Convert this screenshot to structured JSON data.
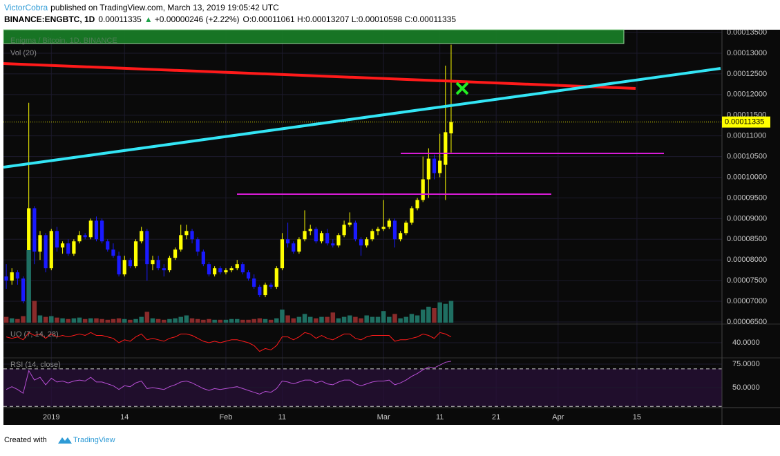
{
  "header": {
    "author": "VictorCobra",
    "published": "published on TradingView.com, March 13, 2019 19:05:42 UTC",
    "symbol": "BINANCE:ENGBTC, 1D",
    "last": "0.00011335",
    "change": "+0.00000246 (+2.22%)",
    "ohlc": "O:0.00011061 H:0.00013207 L:0.00010598 C:0.00011335"
  },
  "footer": {
    "created": "Created with",
    "brand": "TradingView"
  },
  "chart_data": [
    {
      "type": "candlestick",
      "title": "Enigma / Bitcoin, 1D, BINANCE",
      "price_label": "0.00011335",
      "up_color": "#ffff00",
      "down_color": "#1a1aff",
      "open": [
        7.6e-05,
        7.5e-05,
        7.7e-05,
        7.55e-05,
        7e-05,
        9.25e-05,
        8.2e-05,
        8.6e-05,
        7.8e-05,
        8.7e-05,
        8.3e-05,
        8.4e-05,
        8.15e-05,
        8.45e-05,
        8.6e-05,
        8.55e-05,
        8.95e-05,
        8.95e-05,
        8.45e-05,
        8.25e-05,
        8.1e-05,
        7.65e-05,
        8e-05,
        7.85e-05,
        8.45e-05,
        8.7e-05,
        7.9e-05,
        8e-05,
        7.8e-05,
        7.75e-05,
        8.05e-05,
        8.25e-05,
        8.6e-05,
        8.7e-05,
        8.5e-05,
        8.2e-05,
        7.9e-05,
        7.65e-05,
        7.8e-05,
        7.7e-05,
        7.75e-05,
        7.8e-05,
        7.9e-05,
        7.7e-05,
        7.55e-05,
        7.35e-05,
        7.15e-05,
        7.4e-05,
        7.35e-05,
        7.8e-05,
        8.5e-05,
        8.4e-05,
        8.2e-05,
        8.5e-05,
        8.7e-05,
        8.75e-05,
        8.45e-05,
        8.65e-05,
        8.4e-05,
        8.35e-05,
        8.6e-05,
        8.85e-05,
        8.9e-05,
        8.5e-05,
        8.35e-05,
        8.5e-05,
        8.7e-05,
        8.75e-05,
        8.8e-05,
        8.95e-05,
        8.5e-05,
        8.65e-05,
        8.9e-05,
        9.25e-05,
        9.45e-05,
        9.95e-05,
        0.0001045,
        0.000101,
        0.000103,
        0.00011061
      ],
      "high": [
        7.9e-05,
        7.8e-05,
        7.75e-05,
        7.6e-05,
        0.000118,
        9.3e-05,
        8.7e-05,
        8.65e-05,
        8.75e-05,
        8.8e-05,
        8.45e-05,
        8.5e-05,
        8.5e-05,
        8.7e-05,
        8.65e-05,
        9e-05,
        9.05e-05,
        9e-05,
        8.5e-05,
        8.4e-05,
        8.2e-05,
        8.1e-05,
        8.05e-05,
        8.5e-05,
        8.8e-05,
        8.75e-05,
        8.1e-05,
        8.1e-05,
        7.9e-05,
        8.1e-05,
        8.3e-05,
        8.85e-05,
        8.85e-05,
        8.75e-05,
        8.55e-05,
        8.25e-05,
        7.95e-05,
        7.85e-05,
        7.85e-05,
        7.8e-05,
        7.85e-05,
        8e-05,
        7.95e-05,
        7.75e-05,
        7.65e-05,
        7.4e-05,
        7.45e-05,
        7.45e-05,
        7.85e-05,
        8.65e-05,
        8.9e-05,
        8.45e-05,
        8.55e-05,
        9.2e-05,
        8.85e-05,
        8.8e-05,
        8.7e-05,
        8.75e-05,
        8.5e-05,
        8.65e-05,
        8.95e-05,
        9.15e-05,
        8.95e-05,
        8.55e-05,
        8.55e-05,
        8.75e-05,
        8.8e-05,
        9.45e-05,
        9e-05,
        9e-05,
        8.7e-05,
        8.95e-05,
        9.3e-05,
        9.5e-05,
        0.000105,
        0.000107,
        0.0001055,
        0.0001105,
        0.000127,
        0.00013207
      ],
      "low": [
        7.3e-05,
        7.4e-05,
        7.4e-05,
        6.95e-05,
        6.9e-05,
        7.9e-05,
        8e-05,
        7.7e-05,
        7.75e-05,
        8.2e-05,
        8.15e-05,
        8.1e-05,
        8.1e-05,
        8.4e-05,
        8.5e-05,
        8.5e-05,
        8.45e-05,
        8.4e-05,
        8.2e-05,
        8.05e-05,
        7.6e-05,
        7.6e-05,
        7.8e-05,
        7.8e-05,
        8.4e-05,
        7.5e-05,
        7.75e-05,
        7.75e-05,
        7.6e-05,
        7.7e-05,
        8e-05,
        8.2e-05,
        8.5e-05,
        8.4e-05,
        8.1e-05,
        7.85e-05,
        7.6e-05,
        7.6e-05,
        7.65e-05,
        7.65e-05,
        7.7e-05,
        7.75e-05,
        7.65e-05,
        7.5e-05,
        7.3e-05,
        7.1e-05,
        7.1e-05,
        7.3e-05,
        7.3e-05,
        7.75e-05,
        8.3e-05,
        8.15e-05,
        8.15e-05,
        8.45e-05,
        8.6e-05,
        8.4e-05,
        8.4e-05,
        8.35e-05,
        8.3e-05,
        8.3e-05,
        8.55e-05,
        8.8e-05,
        8.45e-05,
        8.1e-05,
        8.3e-05,
        8.45e-05,
        8.6e-05,
        8.7e-05,
        8.75e-05,
        8.3e-05,
        8.45e-05,
        8.6e-05,
        8.85e-05,
        9.2e-05,
        9.4e-05,
        9.5e-05,
        9.95e-05,
        0.0001,
        9.45e-05,
        0.00010598
      ],
      "close": [
        7.5e-05,
        7.7e-05,
        7.55e-05,
        7e-05,
        9.25e-05,
        8.2e-05,
        8.6e-05,
        7.8e-05,
        8.7e-05,
        8.3e-05,
        8.4e-05,
        8.15e-05,
        8.45e-05,
        8.6e-05,
        8.55e-05,
        8.95e-05,
        8.5e-05,
        8.45e-05,
        8.25e-05,
        8.1e-05,
        7.65e-05,
        8e-05,
        7.85e-05,
        8.45e-05,
        8.7e-05,
        7.9e-05,
        8e-05,
        7.8e-05,
        7.75e-05,
        8.05e-05,
        8.25e-05,
        8.6e-05,
        8.7e-05,
        8.5e-05,
        8.2e-05,
        7.9e-05,
        7.65e-05,
        7.8e-05,
        7.7e-05,
        7.75e-05,
        7.8e-05,
        7.9e-05,
        7.7e-05,
        7.55e-05,
        7.35e-05,
        7.15e-05,
        7.4e-05,
        7.35e-05,
        7.8e-05,
        8.5e-05,
        8.4e-05,
        8.2e-05,
        8.5e-05,
        8.7e-05,
        8.75e-05,
        8.45e-05,
        8.65e-05,
        8.4e-05,
        8.35e-05,
        8.6e-05,
        8.85e-05,
        8.9e-05,
        8.5e-05,
        8.35e-05,
        8.5e-05,
        8.7e-05,
        8.75e-05,
        8.8e-05,
        8.95e-05,
        8.5e-05,
        8.65e-05,
        8.9e-05,
        9.25e-05,
        9.45e-05,
        9.95e-05,
        0.0001045,
        0.000101,
        0.000104,
        0.00011089,
        0.00011335
      ],
      "xlim": [
        -0.5,
        127.1
      ],
      "xticks": [
        {
          "value": 8,
          "label": "2019"
        },
        {
          "value": 21,
          "label": "14"
        },
        {
          "value": 39,
          "label": "Feb"
        },
        {
          "value": 49,
          "label": "11"
        },
        {
          "value": 67,
          "label": "Mar"
        },
        {
          "value": 77,
          "label": "11"
        },
        {
          "value": 87,
          "label": "21"
        },
        {
          "value": 98,
          "label": "Apr"
        },
        {
          "value": 112,
          "label": "15"
        }
      ],
      "ylim": [
        6.483e-05,
        0.00013568
      ],
      "yticks": [
        {
          "value": 0.000135,
          "label": "0.00013500"
        },
        {
          "value": 0.00013,
          "label": "0.00013000"
        },
        {
          "value": 0.000125,
          "label": "0.00012500"
        },
        {
          "value": 0.00012,
          "label": "0.00012000"
        },
        {
          "value": 0.000115,
          "label": "0.00011500"
        },
        {
          "value": 0.00011,
          "label": "0.00011000"
        },
        {
          "value": 0.000105,
          "label": "0.00010500"
        },
        {
          "value": 0.0001,
          "label": "0.00010000"
        },
        {
          "value": 9.5e-05,
          "label": "0.00009500"
        },
        {
          "value": 9e-05,
          "label": "0.00009000"
        },
        {
          "value": 8.5e-05,
          "label": "0.00008500"
        },
        {
          "value": 8e-05,
          "label": "0.00008000"
        },
        {
          "value": 7.5e-05,
          "label": "0.00007500"
        },
        {
          "value": 7e-05,
          "label": "0.00007000"
        },
        {
          "value": 6.5e-05,
          "label": "0.00006500"
        }
      ],
      "grid": true
    },
    {
      "type": "bar",
      "title": "Vol (20)",
      "up_color": "#1f6f62",
      "down_color": "#8a2b2b",
      "ylim": [
        0,
        100
      ],
      "values": [
        8,
        6,
        5,
        9,
        100,
        30,
        10,
        8,
        9,
        7,
        6,
        5,
        6,
        7,
        5,
        6,
        6,
        5,
        4,
        5,
        6,
        5,
        4,
        5,
        8,
        15,
        6,
        5,
        4,
        5,
        6,
        8,
        10,
        6,
        5,
        4,
        5,
        4,
        4,
        4,
        5,
        5,
        4,
        4,
        5,
        6,
        5,
        4,
        6,
        18,
        10,
        6,
        8,
        12,
        8,
        6,
        8,
        8,
        14,
        6,
        8,
        10,
        8,
        6,
        10,
        8,
        8,
        16,
        8,
        12,
        6,
        8,
        12,
        10,
        18,
        22,
        20,
        28,
        26,
        30
      ]
    },
    {
      "type": "line",
      "title": "UO (7, 14, 28)",
      "color": "#ff1a1a",
      "ylim": [
        30,
        50
      ],
      "yticks": [
        {
          "value": 40,
          "label": "40.0000"
        }
      ],
      "values": [
        44,
        43,
        44,
        42,
        47,
        45,
        46,
        43,
        46,
        44,
        45,
        44,
        45,
        46,
        45,
        47,
        45,
        45,
        44,
        43,
        40,
        42,
        41,
        44,
        46,
        42,
        43,
        42,
        41,
        43,
        44,
        46,
        46,
        45,
        43,
        41,
        40,
        41,
        40,
        41,
        42,
        42,
        41,
        40,
        38,
        34,
        36,
        35,
        38,
        44,
        44,
        42,
        44,
        47,
        46,
        43,
        45,
        43,
        42,
        44,
        46,
        46,
        43,
        42,
        44,
        45,
        45,
        45,
        45,
        41,
        42,
        42,
        43,
        44,
        46,
        45,
        43,
        47,
        46,
        44
      ]
    },
    {
      "type": "line",
      "title": "RSI (14, close)",
      "color": "#b84fd6",
      "ylim": [
        28.7,
        80.9
      ],
      "yticks": [
        {
          "value": 75,
          "label": "75.0000"
        },
        {
          "value": 50,
          "label": "50.0000"
        }
      ],
      "bands": [
        70,
        30
      ],
      "values": [
        48,
        51,
        48,
        44,
        68,
        58,
        61,
        53,
        60,
        56,
        57,
        55,
        57,
        58,
        57,
        61,
        56,
        56,
        54,
        52,
        48,
        52,
        51,
        55,
        57,
        49,
        50,
        49,
        48,
        51,
        53,
        56,
        57,
        55,
        52,
        49,
        47,
        49,
        48,
        49,
        50,
        51,
        49,
        47,
        45,
        43,
        46,
        45,
        49,
        57,
        56,
        54,
        56,
        58,
        58,
        55,
        57,
        54,
        53,
        56,
        58,
        58,
        54,
        52,
        54,
        56,
        57,
        57,
        58,
        53,
        55,
        58,
        62,
        65,
        69,
        72,
        71,
        74,
        77,
        78
      ]
    }
  ]
}
